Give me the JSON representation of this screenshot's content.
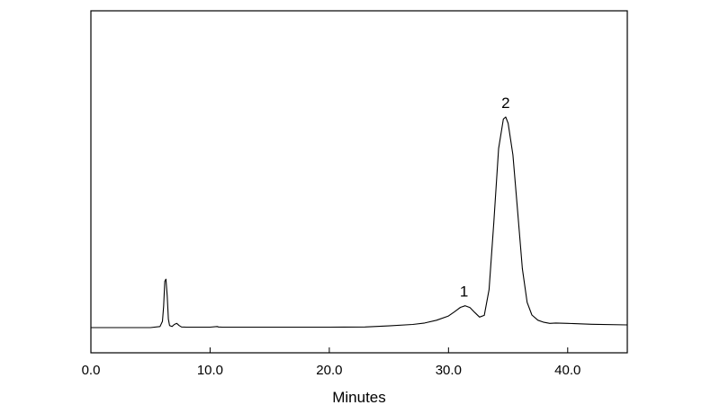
{
  "chart_data": {
    "type": "line",
    "title": "",
    "xlabel": "Minutes",
    "ylabel": "",
    "xlim": [
      0,
      45
    ],
    "ylim": [
      0,
      100
    ],
    "x_ticks": [
      0,
      10,
      20,
      30,
      40
    ],
    "x_tick_labels": [
      "0.0",
      "10.0",
      "20.0",
      "30.0",
      "40.0"
    ],
    "grid": false,
    "legend": "none",
    "line_color": "#000000",
    "series": [
      {
        "x": [
          0,
          5.0,
          5.8,
          6.0,
          6.1,
          6.2,
          6.3,
          6.4,
          6.5,
          6.6,
          6.8,
          7.0,
          7.2,
          7.4,
          7.6,
          8.0,
          10.0,
          10.6,
          10.7,
          11.0,
          15.0,
          20.0,
          23.0,
          25.0,
          27.0,
          28.0,
          29.0,
          30.0,
          30.5,
          31.0,
          31.4,
          31.8,
          32.2,
          32.6,
          33.0,
          33.4,
          33.8,
          34.2,
          34.6,
          34.8,
          35.0,
          35.4,
          35.8,
          36.2,
          36.6,
          37.0,
          37.5,
          38.0,
          38.5,
          39.0,
          40.0,
          42.0,
          45.0
        ],
        "y": [
          0,
          0,
          0.5,
          3,
          10,
          22,
          23,
          15,
          4,
          1,
          0.5,
          1.5,
          2,
          1,
          0.3,
          0.2,
          0.2,
          0.5,
          0.3,
          0.2,
          0.2,
          0.2,
          0.3,
          0.8,
          1.5,
          2.2,
          3.5,
          5.5,
          7.5,
          9.6,
          10.4,
          9.5,
          7.2,
          5,
          5.8,
          18,
          50,
          85,
          99,
          100,
          97,
          82,
          55,
          28,
          12,
          6,
          3.5,
          2.5,
          2,
          2.2,
          2,
          1.6,
          1.3
        ]
      }
    ],
    "annotations": [
      {
        "text": "1",
        "x": 31.3,
        "y": 10.4
      },
      {
        "text": "2",
        "x": 34.8,
        "y": 100
      }
    ]
  }
}
